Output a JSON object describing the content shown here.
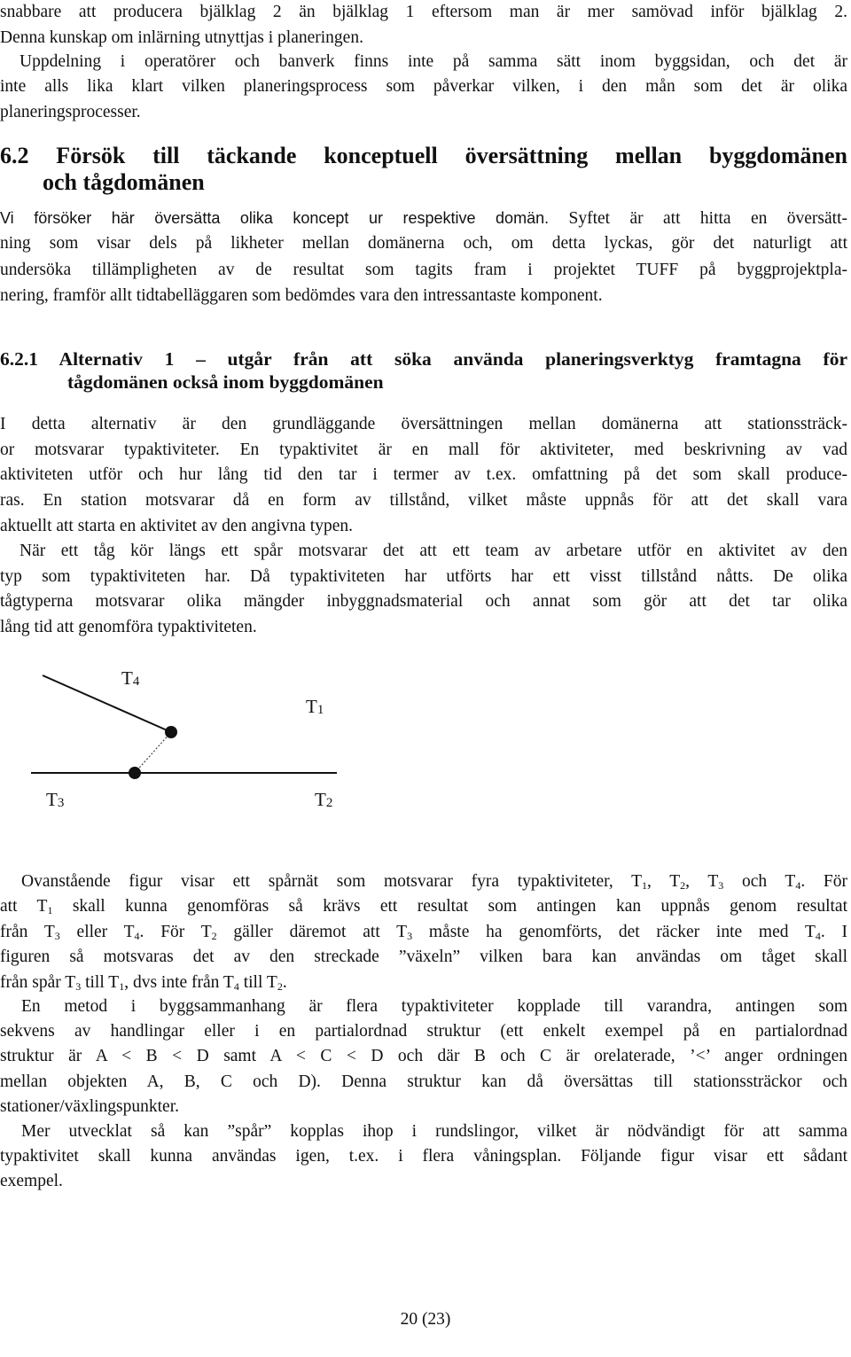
{
  "blocks": [
    {
      "kind": "body",
      "lines": [
        [
          "snabbare att producera bjälklag 2 än bjälklag 1 eftersom man är mer samövad inför bjälklag 2."
        ],
        [
          "Denna kunskap om inlärning utnyttjas i planeringen."
        ]
      ]
    },
    {
      "kind": "body",
      "lines": [
        [
          "Uppdelning i operatörer och banverk finns inte på samma sätt inom byggsidan, och det är"
        ],
        [
          "inte alls lika klart vilken planeringsprocess som påverkar vilken, i den mån som det är olika"
        ],
        [
          "planeringsprocesser."
        ]
      ]
    },
    {
      "kind": "h2",
      "lines": [
        [
          "6.2 Försök till täckande konceptuell översättning mellan byggdomänen"
        ],
        [
          "och tågdomänen"
        ]
      ]
    },
    {
      "kind": "body",
      "lines": [
        [
          {
            "sans": "Vi försöker här översätta olika koncept ur respektive domän."
          },
          " Syftet är att hitta en översätt-"
        ],
        [
          "ning som visar dels på likheter mellan domänerna och, om detta lyckas, gör det naturligt att"
        ],
        [
          "undersöka tillämpligheten av de resultat som tagits fram i projektet TUFF på byggprojektpla-"
        ],
        [
          "nering, framför allt tidtabelläggaren som bedömdes vara den intressantaste komponent."
        ]
      ]
    },
    {
      "kind": "h3",
      "lines": [
        [
          "6.2.1 Alternativ 1 – utgår från att söka använda planeringsverktyg framtagna för"
        ],
        [
          "tågdomänen också inom byggdomänen"
        ]
      ]
    },
    {
      "kind": "body",
      "lines": [
        [
          "I detta alternativ är den grundläggande översättningen mellan domänerna att stationssträck-"
        ],
        [
          "or motsvarar typaktiviteter. En typaktivitet är en mall för aktiviteter, med beskrivning av vad"
        ],
        [
          "aktiviteten utför och hur lång tid den tar i termer av t.ex. omfattning på det som skall produce-"
        ],
        [
          "ras. En station motsvarar då en form av tillstånd, vilket måste uppnås för att det skall vara"
        ],
        [
          "aktuellt att starta en aktivitet av den angivna typen."
        ]
      ]
    },
    {
      "kind": "body",
      "lines": [
        [
          "När ett tåg kör längs ett spår motsvarar det att ett team av arbetare utför en aktivitet av den"
        ],
        [
          "typ som typaktiviteten har. Då typaktiviteten har utförts har ett visst tillstånd nåtts. De olika"
        ],
        [
          "tågtyperna motsvarar olika mängder inbyggnadsmaterial och annat som gör att det tar olika"
        ],
        [
          "lång tid att genomföra typaktiviteten."
        ]
      ]
    },
    {
      "kind": "body",
      "lines": [
        [
          "Ovanstående figur visar ett spårnät som motsvarar fyra typaktiviteter, T",
          {
            "sub": "1"
          },
          ", T",
          {
            "sub": "2"
          },
          ", T",
          {
            "sub": "3"
          },
          " och T",
          {
            "sub": "4"
          },
          ". För"
        ],
        [
          "att T",
          {
            "sub": "1"
          },
          " skall kunna genomföras så krävs ett resultat som antingen kan uppnås genom resultat"
        ],
        [
          "från T",
          {
            "sub": "3"
          },
          " eller T",
          {
            "sub": "4"
          },
          ". För T",
          {
            "sub": "2"
          },
          " gäller däremot att T",
          {
            "sub": "3"
          },
          " måste ha genomförts, det räcker inte med T",
          {
            "sub": "4"
          },
          ". I"
        ],
        [
          "figuren så motsvaras det av den streckade ”växeln” vilken bara kan användas om tåget skall"
        ],
        [
          "från spår T",
          {
            "sub": "3"
          },
          " till T",
          {
            "sub": "1"
          },
          ", dvs inte från T",
          {
            "sub": "4"
          },
          " till T",
          {
            "sub": "2"
          },
          "."
        ]
      ]
    },
    {
      "kind": "body",
      "lines": [
        [
          "En metod i byggsammanhang är flera typaktiviteter kopplade till varandra, antingen som"
        ],
        [
          "sekvens av handlingar eller i en partialordnad struktur (ett enkelt exempel på en partialordnad"
        ],
        [
          "struktur är A < B < D samt A < C < D och där B och C är orelaterade, ’<’ anger ordningen"
        ],
        [
          "mellan objekten A, B, C och D). Denna struktur kan då översättas till stationssträckor och"
        ],
        [
          "stationer/växlingspunkter."
        ]
      ]
    },
    {
      "kind": "body",
      "lines": [
        [
          "Mer utvecklat så kan ”spår” kopplas ihop i rundslingor, vilket är nödvändigt för att samma"
        ],
        [
          "typaktivitet skall kunna användas igen, t.ex. i flera våningsplan. Följande figur visar ett sådant"
        ],
        [
          "exempel."
        ]
      ]
    }
  ],
  "figure": {
    "labels": [
      [
        "T",
        {
          "sub": "4"
        }
      ],
      [
        "T",
        {
          "sub": "1"
        }
      ],
      [
        "T",
        {
          "sub": "3"
        }
      ],
      [
        "T",
        {
          "sub": "2"
        }
      ]
    ]
  },
  "footer": {
    "page": "20 (23)"
  }
}
